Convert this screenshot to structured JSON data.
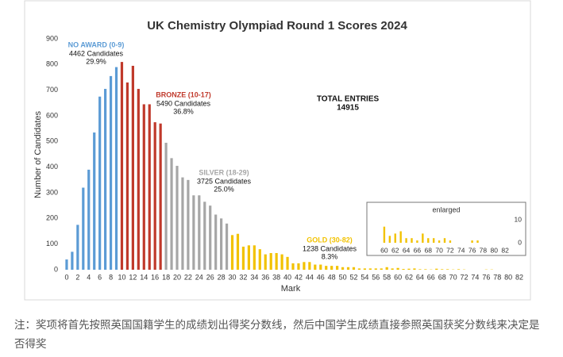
{
  "chart_data": [
    {
      "type": "bar",
      "title": "UK Chemistry Olympiad Round 1 Scores 2024",
      "x_label": "Mark",
      "y_label": "Number of Candidates",
      "xlim": [
        -1,
        83
      ],
      "ylim": [
        0,
        900
      ],
      "xticks": [
        0,
        2,
        4,
        6,
        8,
        10,
        12,
        14,
        16,
        18,
        20,
        22,
        24,
        26,
        28,
        30,
        32,
        34,
        36,
        38,
        40,
        42,
        44,
        46,
        48,
        50,
        52,
        54,
        56,
        58,
        60,
        62,
        64,
        66,
        68,
        70,
        72,
        74,
        76,
        78,
        80,
        82
      ],
      "yticks": [
        0,
        100,
        200,
        300,
        400,
        500,
        600,
        700,
        800,
        900
      ],
      "grid": false,
      "total_label": "TOTAL ENTRIES",
      "total": 14915,
      "series": [
        {
          "name": "NO AWARD (0-9)",
          "color": "#5b9bd5",
          "candidates": "4462 Candidates",
          "share": "29.9%",
          "x": [
            0,
            1,
            2,
            3,
            4,
            5,
            6,
            7,
            8,
            9
          ],
          "values": [
            40,
            70,
            175,
            320,
            390,
            535,
            675,
            705,
            755,
            790
          ]
        },
        {
          "name": "BRONZE (10-17)",
          "color": "#c0392b",
          "candidates": "5490 Candidates",
          "share": "36.8%",
          "x": [
            10,
            11,
            12,
            13,
            14,
            15,
            16,
            17
          ],
          "values": [
            810,
            730,
            795,
            705,
            645,
            645,
            575,
            570
          ]
        },
        {
          "name": "SILVER (18-29)",
          "color": "#a6a6a6",
          "candidates": "3725 Candidates",
          "share": "25.0%",
          "x": [
            18,
            19,
            20,
            21,
            22,
            23,
            24,
            25,
            26,
            27,
            28,
            29
          ],
          "values": [
            495,
            435,
            405,
            360,
            350,
            290,
            290,
            265,
            250,
            215,
            200,
            180
          ]
        },
        {
          "name": "GOLD (30-82)",
          "color": "#f2c200",
          "candidates": "1238 Candidates",
          "share": "8.3%",
          "x": [
            30,
            31,
            32,
            33,
            34,
            35,
            36,
            37,
            38,
            39,
            40,
            41,
            42,
            43,
            44,
            45,
            46,
            47,
            48,
            49,
            50,
            51,
            52,
            53,
            54,
            55,
            56,
            57,
            58,
            59,
            60,
            61,
            62,
            63,
            64,
            65,
            66,
            67,
            68,
            69,
            70,
            71,
            72,
            73,
            74,
            75,
            76,
            77,
            78,
            79,
            80,
            81,
            82
          ],
          "values": [
            135,
            140,
            90,
            95,
            95,
            80,
            60,
            65,
            65,
            60,
            50,
            25,
            25,
            30,
            30,
            20,
            20,
            15,
            15,
            15,
            10,
            10,
            10,
            5,
            5,
            5,
            5,
            5,
            10,
            5,
            7,
            3,
            4,
            5,
            2,
            2,
            1,
            4,
            2,
            2,
            1,
            2,
            1,
            0,
            0,
            0,
            1,
            1,
            0,
            0,
            0,
            0,
            0
          ]
        }
      ]
    },
    {
      "type": "bar",
      "title": "enlarged",
      "color": "#f2c200",
      "xlim": [
        59,
        83
      ],
      "ylim": [
        0,
        15
      ],
      "xticks": [
        60,
        62,
        64,
        66,
        68,
        70,
        72,
        74,
        76,
        78,
        80,
        82
      ],
      "yticks": [
        0,
        10
      ],
      "x": [
        60,
        61,
        62,
        63,
        64,
        65,
        66,
        67,
        68,
        69,
        70,
        71,
        72,
        73,
        74,
        75,
        76,
        77,
        78,
        79,
        80,
        81,
        82
      ],
      "values": [
        7,
        3,
        4,
        5,
        2,
        2,
        1,
        4,
        2,
        2,
        1,
        2,
        1,
        0,
        0,
        0,
        1,
        1,
        0,
        0,
        0,
        0,
        0
      ]
    }
  ],
  "caption": "注：奖项将首先按照英国国籍学生的成绩划出得奖分数线，然后中国学生成绩直接参照英国获奖分数线来决定是否得奖"
}
